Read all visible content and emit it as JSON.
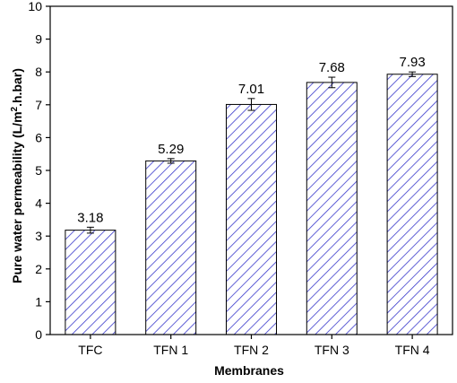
{
  "chart_data": {
    "type": "bar",
    "title": "",
    "xlabel": "Membranes",
    "ylabel": "Pure water permeability (L/m",
    "ylabel_sup": "2",
    "ylabel_tail": ".h.bar)",
    "categories": [
      "TFC",
      "TFN 1",
      "TFN 2",
      "TFN 3",
      "TFN 4"
    ],
    "values": [
      3.18,
      5.29,
      7.01,
      7.68,
      7.93
    ],
    "value_labels": [
      "3.18",
      "5.29",
      "7.01",
      "7.68",
      "7.93"
    ],
    "errors": [
      0.09,
      0.07,
      0.18,
      0.16,
      0.07
    ],
    "ylim": [
      0,
      10
    ],
    "yticks": [
      "0",
      "1",
      "2",
      "3",
      "4",
      "5",
      "6",
      "7",
      "8",
      "9",
      "10"
    ],
    "grid": false,
    "bar_fill": "hatched-diagonal",
    "hatch_color": "#3a3acc",
    "bar_edge_color": "#000000"
  }
}
